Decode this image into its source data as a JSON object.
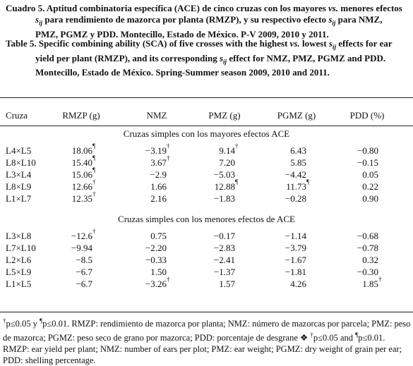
{
  "caption_es": [
    "Cuadro 5. Aptitud combinatoria específica (ACE) de cinco cruzas con los mayores ",
    "vs.",
    " menores efectos ",
    "s",
    "ij",
    " para rendimiento de mazorca por planta (RMZP), y su respectivo efecto ",
    "s",
    "ij",
    " para NMZ, PMZ, PGMZ y PDD. Montecillo, Estado de México. P-V 2009, 2010 y 2011."
  ],
  "caption_en": [
    "Table 5. Specific combining ability (SCA) of five crosses with the highest ",
    "vs.",
    " lowest ",
    "s",
    "ij",
    " effects for ear yield per plant (RMZP), and its corresponding ",
    "s",
    "ij",
    " effect for NMZ, PMZ, PGMZ and PDD. Montecillo, Estado de México. Spring-Summer season 2009, 2010 and 2011."
  ],
  "table": {
    "header": [
      "Cruza",
      "RMZP (g)",
      "NMZ",
      "PMZ (g)",
      "PGMZ (g)",
      "PDD (%)"
    ],
    "sections": [
      {
        "title": "Cruzas simples con los mayores efectos ACE",
        "rows": [
          [
            "L4×L5",
            {
              "text": "18.06",
              "sup": "¶"
            },
            {
              "text": "−3.19",
              "sup": "†"
            },
            {
              "text": "9.14",
              "sup": "†"
            },
            "6.43",
            "−0.80"
          ],
          [
            "L8×L10",
            {
              "text": "15.40",
              "sup": "¶"
            },
            {
              "text": "3.67",
              "sup": "†"
            },
            "7.20",
            "5.85",
            "−0.15"
          ],
          [
            "L3×L4",
            {
              "text": "15.06",
              "sup": "¶"
            },
            "−2.9",
            "−5.03",
            "−4.42",
            "0.05"
          ],
          [
            "L8×L9",
            {
              "text": "12.66",
              "sup": "†"
            },
            "1.66",
            {
              "text": "12.88",
              "sup": "¶"
            },
            {
              "text": "11.73",
              "sup": "¶"
            },
            "0.22"
          ],
          [
            "L1×L7",
            {
              "text": "12.35",
              "sup": "†"
            },
            "2.16",
            "−1.83",
            "−0.28",
            "0.90"
          ]
        ]
      },
      {
        "title": "Cruzas simples con los menores efectos de ACE",
        "rows": [
          [
            "L3×L8",
            {
              "text": "−12.6",
              "sup": "†"
            },
            "0.75",
            "−0.17",
            "−1.14",
            "−0.68"
          ],
          [
            "L7×L10",
            "−9.94",
            "−2.20",
            "−2.83",
            "−3.79",
            "−0.78"
          ],
          [
            "L2×L6",
            "−8.5",
            "−0.33",
            "−2.41",
            "−1.67",
            "0.32"
          ],
          [
            "L5×L9",
            "−6.7",
            "1.50",
            "−1.37",
            "−1.81",
            "−0.30"
          ],
          [
            "L1×L5",
            "−6.7",
            {
              "text": "−3.26",
              "sup": "†"
            },
            "1.57",
            "4.26",
            {
              "text": "1.85",
              "sup": "†"
            }
          ]
        ]
      }
    ]
  },
  "footnote": [
    "†",
    "p≤0.05 y ",
    "¶",
    "p≤0.01. RMZP: rendimiento de mazorca por planta; NMZ: número de mazorcas por parcela; PMZ: peso de mazorca; PGMZ: peso seco de grano por mazorca; PDD: porcentaje de desgrane ❖ ",
    "†",
    "p≤0.05 and ",
    "¶",
    "p≤0.01. RMZP: ear yield per plant; NMZ: number of ears per plot; PMZ: ear weight; PGMZ: dry weight of grain per ear; PDD: shelling percentage."
  ]
}
